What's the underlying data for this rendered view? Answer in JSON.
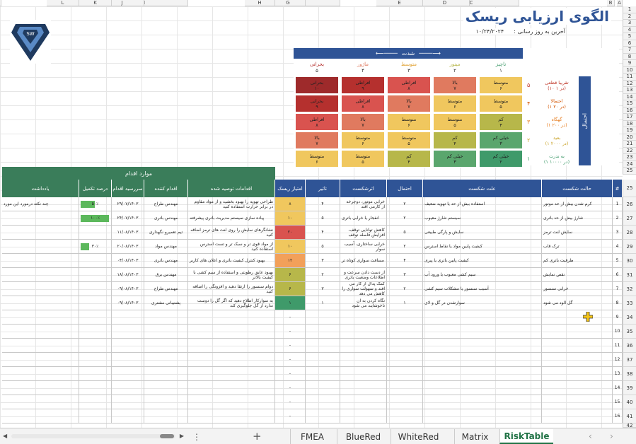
{
  "title": "الگوی ارزیابی ریسک",
  "updated_label": "آخرین به روز رسانی :",
  "updated_date": "۱۰/۲۴/۲۰۲۴",
  "col_headers": [
    "A",
    "B",
    "C",
    "D",
    "E",
    "F",
    "G",
    "H",
    "I",
    "J",
    "K",
    "L",
    "M"
  ],
  "row_numbers": [
    "1",
    "2",
    "3",
    "4",
    "5",
    "6",
    "7",
    "8",
    "9",
    "10",
    "11",
    "12",
    "13",
    "14",
    "15",
    "16",
    "17",
    "18",
    "19",
    "20",
    "21",
    "22",
    "23",
    "24",
    "25",
    "26",
    "27",
    "28",
    "29",
    "30",
    "31"
  ],
  "row_numbers_b": [
    "1",
    "2",
    "3",
    "4",
    "5",
    "6",
    "7",
    "8",
    "9",
    "10",
    "11",
    "12",
    "13",
    "14",
    "15",
    "16"
  ],
  "matrix": {
    "severity_title": "شدت",
    "probability_title": "احتمال",
    "sev_labels": [
      {
        "name": "ناچیز",
        "num": "۱"
      },
      {
        "name": "مینور",
        "num": "۲"
      },
      {
        "name": "متوسط",
        "num": "۳"
      },
      {
        "name": "ماژور",
        "num": "۴"
      },
      {
        "name": "بحرانی",
        "num": "۵"
      }
    ],
    "prob_labels": [
      {
        "name": "تقریبا قطعی",
        "sub": "(۱۰ در ۱)",
        "num": "۵"
      },
      {
        "name": "احتمالا",
        "sub": "(۱ در ۲۰)",
        "num": "۴"
      },
      {
        "name": "گهگاه",
        "sub": "(۱ در ۲۰۰)",
        "num": "۳"
      },
      {
        "name": "بعید",
        "sub": "(۱ در ۲۰۰۰)",
        "num": "۲"
      },
      {
        "name": "به ندرت",
        "sub": "(۱ در ۱۰۰۰۰)",
        "num": "۱"
      }
    ],
    "rows": [
      [
        {
          "t": "متوسط",
          "n": "۶",
          "c": "#f0c75e"
        },
        {
          "t": "بالا",
          "n": "۷",
          "c": "#e07a5f"
        },
        {
          "t": "افراطی",
          "n": "۸",
          "c": "#d9534f"
        },
        {
          "t": "افراطی",
          "n": "۹",
          "c": "#b5302e"
        },
        {
          "t": "بحرانی",
          "n": "۱۰",
          "c": "#9e2a2b"
        }
      ],
      [
        {
          "t": "متوسط",
          "n": "۵",
          "c": "#f0c75e"
        },
        {
          "t": "متوسط",
          "n": "۶",
          "c": "#f0c75e"
        },
        {
          "t": "بالا",
          "n": "۷",
          "c": "#e07a5f"
        },
        {
          "t": "افراطی",
          "n": "۸",
          "c": "#d9534f"
        },
        {
          "t": "بحرانی",
          "n": "۹",
          "c": "#b5302e"
        }
      ],
      [
        {
          "t": "کم",
          "n": "۴",
          "c": "#b7b74a"
        },
        {
          "t": "متوسط",
          "n": "۵",
          "c": "#f0c75e"
        },
        {
          "t": "متوسط",
          "n": "۶",
          "c": "#f0c75e"
        },
        {
          "t": "بالا",
          "n": "۷",
          "c": "#e07a5f"
        },
        {
          "t": "افراطی",
          "n": "۸",
          "c": "#d9534f"
        }
      ],
      [
        {
          "t": "خیلی کم",
          "n": "۳",
          "c": "#5aa66d"
        },
        {
          "t": "کم",
          "n": "۴",
          "c": "#b7b74a"
        },
        {
          "t": "متوسط",
          "n": "۵",
          "c": "#f0c75e"
        },
        {
          "t": "متوسط",
          "n": "۶",
          "c": "#f0c75e"
        },
        {
          "t": "بالا",
          "n": "۷",
          "c": "#e07a5f"
        }
      ],
      [
        {
          "t": "خیلی کم",
          "n": "۲",
          "c": "#3f9a6a"
        },
        {
          "t": "خیلی کم",
          "n": "۳",
          "c": "#5aa66d"
        },
        {
          "t": "کم",
          "n": "۴",
          "c": "#b7b74a"
        },
        {
          "t": "متوسط",
          "n": "۵",
          "c": "#f0c75e"
        },
        {
          "t": "متوسط",
          "n": "۶",
          "c": "#f0c75e"
        }
      ]
    ]
  },
  "actions_header": "موارد اقدام",
  "table_headers": [
    "#",
    "حالت شکست",
    "علت شکست",
    "احتمال",
    "اثرشکست",
    "تاثیر",
    "امتیاز ریسک",
    "اقدامات توصیه شده",
    "اقدام کننده",
    "سررسید اقدام",
    "درصد تکمیل",
    "یادداشت"
  ],
  "rows": [
    {
      "n": "1",
      "mode": "کرم شدن بیش از حد موتور",
      "cause": "استفاده بیش از حد یا تهویه ضعیف",
      "p": "۲",
      "effect": "خرابی موتور، دوچرخه از کارمی افتد",
      "i": "۴",
      "score": "۸",
      "sc": "#f0c75e",
      "act": "طراحی تهویه را بهبود بخشید و از مواد مقاوم در برابر حرارت استفاده کنید",
      "who": "مهندس طراح",
      "due": "۲۹/۰۷/۱۴۰۳",
      "pct": "۵۰٪",
      "pv": 0.5,
      "note": "چند نکته درمورد این مورد"
    },
    {
      "n": "2",
      "mode": "شارژ بیش از حد باتری",
      "cause": "سیستم شارژ معیوب",
      "p": "۲",
      "effect": "انفجار یا خرابی باتری",
      "i": "۵",
      "score": "۱۰",
      "sc": "#f0c75e",
      "act": "پیاده سازی سیستم مدیریت باتری پیشرفته",
      "who": "مهندس باتری",
      "due": "۲۴/۰۷/۱۴۰۳",
      "pct": "۱۰۰٪",
      "pv": 1,
      "note": ""
    },
    {
      "n": "3",
      "mode": "سایش لنت ترمز",
      "cause": "سایش و پارگی طبیعی",
      "p": "۵",
      "effect": "کاهش توانایی توقف، افزایش فاصله توقف",
      "i": "۴",
      "score": "۲۰",
      "sc": "#d9534f",
      "act": "نشانگرهای سایش را روی لنت های ترمز اضافه کنید",
      "who": "تیم تعمیرو نگهداری",
      "due": "۱۱/۰۸/۱۴۰۳",
      "pct": "",
      "pv": 0,
      "note": ""
    },
    {
      "n": "4",
      "mode": "ترک قاب",
      "cause": "کیفیت پایین مواد یا نقاط استرس",
      "p": "۲",
      "effect": "خرابی ساختاری، آسیب سوار",
      "i": "۵",
      "score": "۱۰",
      "sc": "#f0c75e",
      "act": "از مواد قوی تر و سبک تر و تست استرس استفاده کنید",
      "who": "مهندس مواد",
      "due": "۲۰/۰۸/۱۴۰۳",
      "pct": "۳۰٪",
      "pv": 0.3,
      "note": ""
    },
    {
      "n": "5",
      "mode": "ظرفیت باتری کم",
      "cause": "کیفیت پایین باتری یا پیری",
      "p": "۴",
      "effect": "مسافت سواری کوتاه تر",
      "i": "۳",
      "score": "۱۲",
      "sc": "#f2a05a",
      "act": "بهبود کنترل کیفیت باتری و اعلان های کاربر",
      "who": "مهندس باتری",
      "due": "۰۴/۰۸/۱۴۰۳",
      "pct": "",
      "pv": 0,
      "note": ""
    },
    {
      "n": "6",
      "mode": "نقص نمایش",
      "cause": "سیم کشی معیوب یا ورود آب",
      "p": "۳",
      "effect": "از دست دادن سرعت و اطلاعات وضعیت باتری",
      "i": "۲",
      "score": "۶",
      "sc": "#b7b74a",
      "act": "بهبود عایق رطوبتی و استفاده از سیم کشی با کیفیت بالاتر",
      "who": "مهندس برق",
      "due": "۱۸/۰۸/۱۴۰۳",
      "pct": "",
      "pv": 0,
      "note": ""
    },
    {
      "n": "7",
      "mode": "خرابی سنسور",
      "cause": "آسیب سنسور یا مشکلات سیم کشی",
      "p": "۲",
      "effect": "کمک پدال از کار می افتد و سهولت سواری را کاهش می دهد",
      "i": "۳",
      "score": "۶",
      "sc": "#b7b74a",
      "act": "دوام سنسور را ارتقا دهید و افزونگی را اضافه کنید",
      "who": "مهندس طراح",
      "due": "۰۹/۰۸/۱۴۰۳",
      "pct": "",
      "pv": 0,
      "note": ""
    },
    {
      "n": "8",
      "mode": "گل الود می شود",
      "cause": "سوارشدن در گل و لای",
      "p": "۱",
      "effect": "نگاه کردن به ان ناخوشایند می شود",
      "i": "۱",
      "score": "۱",
      "sc": "#3f9a6a",
      "act": "به سوارکار اطلاع دهید که اگر گل را دوست ندارد از گل جلوگیری کند",
      "who": "پشتیبانی مشتری",
      "due": "۰۹/۰۸/۱۴۰۳",
      "pct": "",
      "pv": 0,
      "note": ""
    }
  ],
  "empty_rows": [
    "9",
    "10",
    "11",
    "12",
    "13",
    "14",
    "15",
    "16"
  ],
  "empty_score": "-",
  "tabs": [
    "FMEA",
    "BlueRed",
    "WhiteRed",
    "Matrix",
    "RiskTable"
  ],
  "active_tab": "RiskTable",
  "add_sheet": "+",
  "more": "⋮"
}
